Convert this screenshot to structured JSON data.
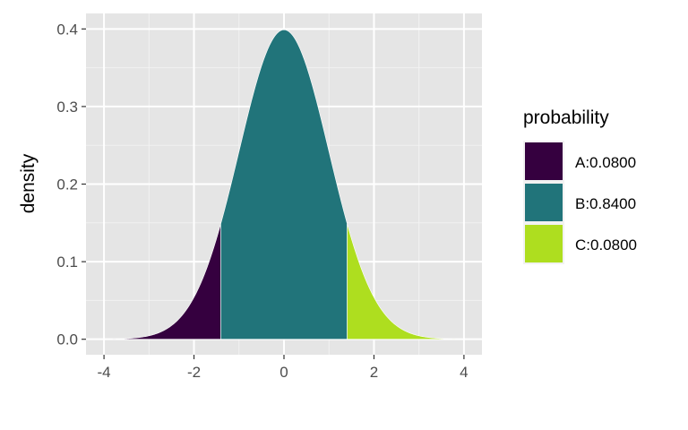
{
  "chart_data": {
    "type": "area",
    "title": "",
    "xlabel": "",
    "ylabel": "density",
    "xlim": [
      -4.4,
      4.4
    ],
    "ylim": [
      -0.02,
      0.42
    ],
    "x_ticks": [
      -4,
      -2,
      0,
      2,
      4
    ],
    "x_tick_labels": [
      "-4",
      "-2",
      "0",
      "2",
      "4"
    ],
    "y_ticks": [
      0,
      0.1,
      0.2,
      0.3,
      0.4
    ],
    "y_tick_labels": [
      "0.0",
      "0.1",
      "0.2",
      "0.3",
      "0.4"
    ],
    "grid": true,
    "curve": "standard normal density, x from -4 to 4",
    "regions": [
      {
        "name": "A:0.0800",
        "from": -4,
        "to": -1.405,
        "color": "#35003f"
      },
      {
        "name": "B:0.8400",
        "from": -1.405,
        "to": 1.405,
        "color": "#21747a"
      },
      {
        "name": "C:0.0800",
        "from": 1.405,
        "to": 4,
        "color": "#aede1f"
      }
    ],
    "legend": {
      "title": "probability",
      "placement": "right"
    }
  }
}
